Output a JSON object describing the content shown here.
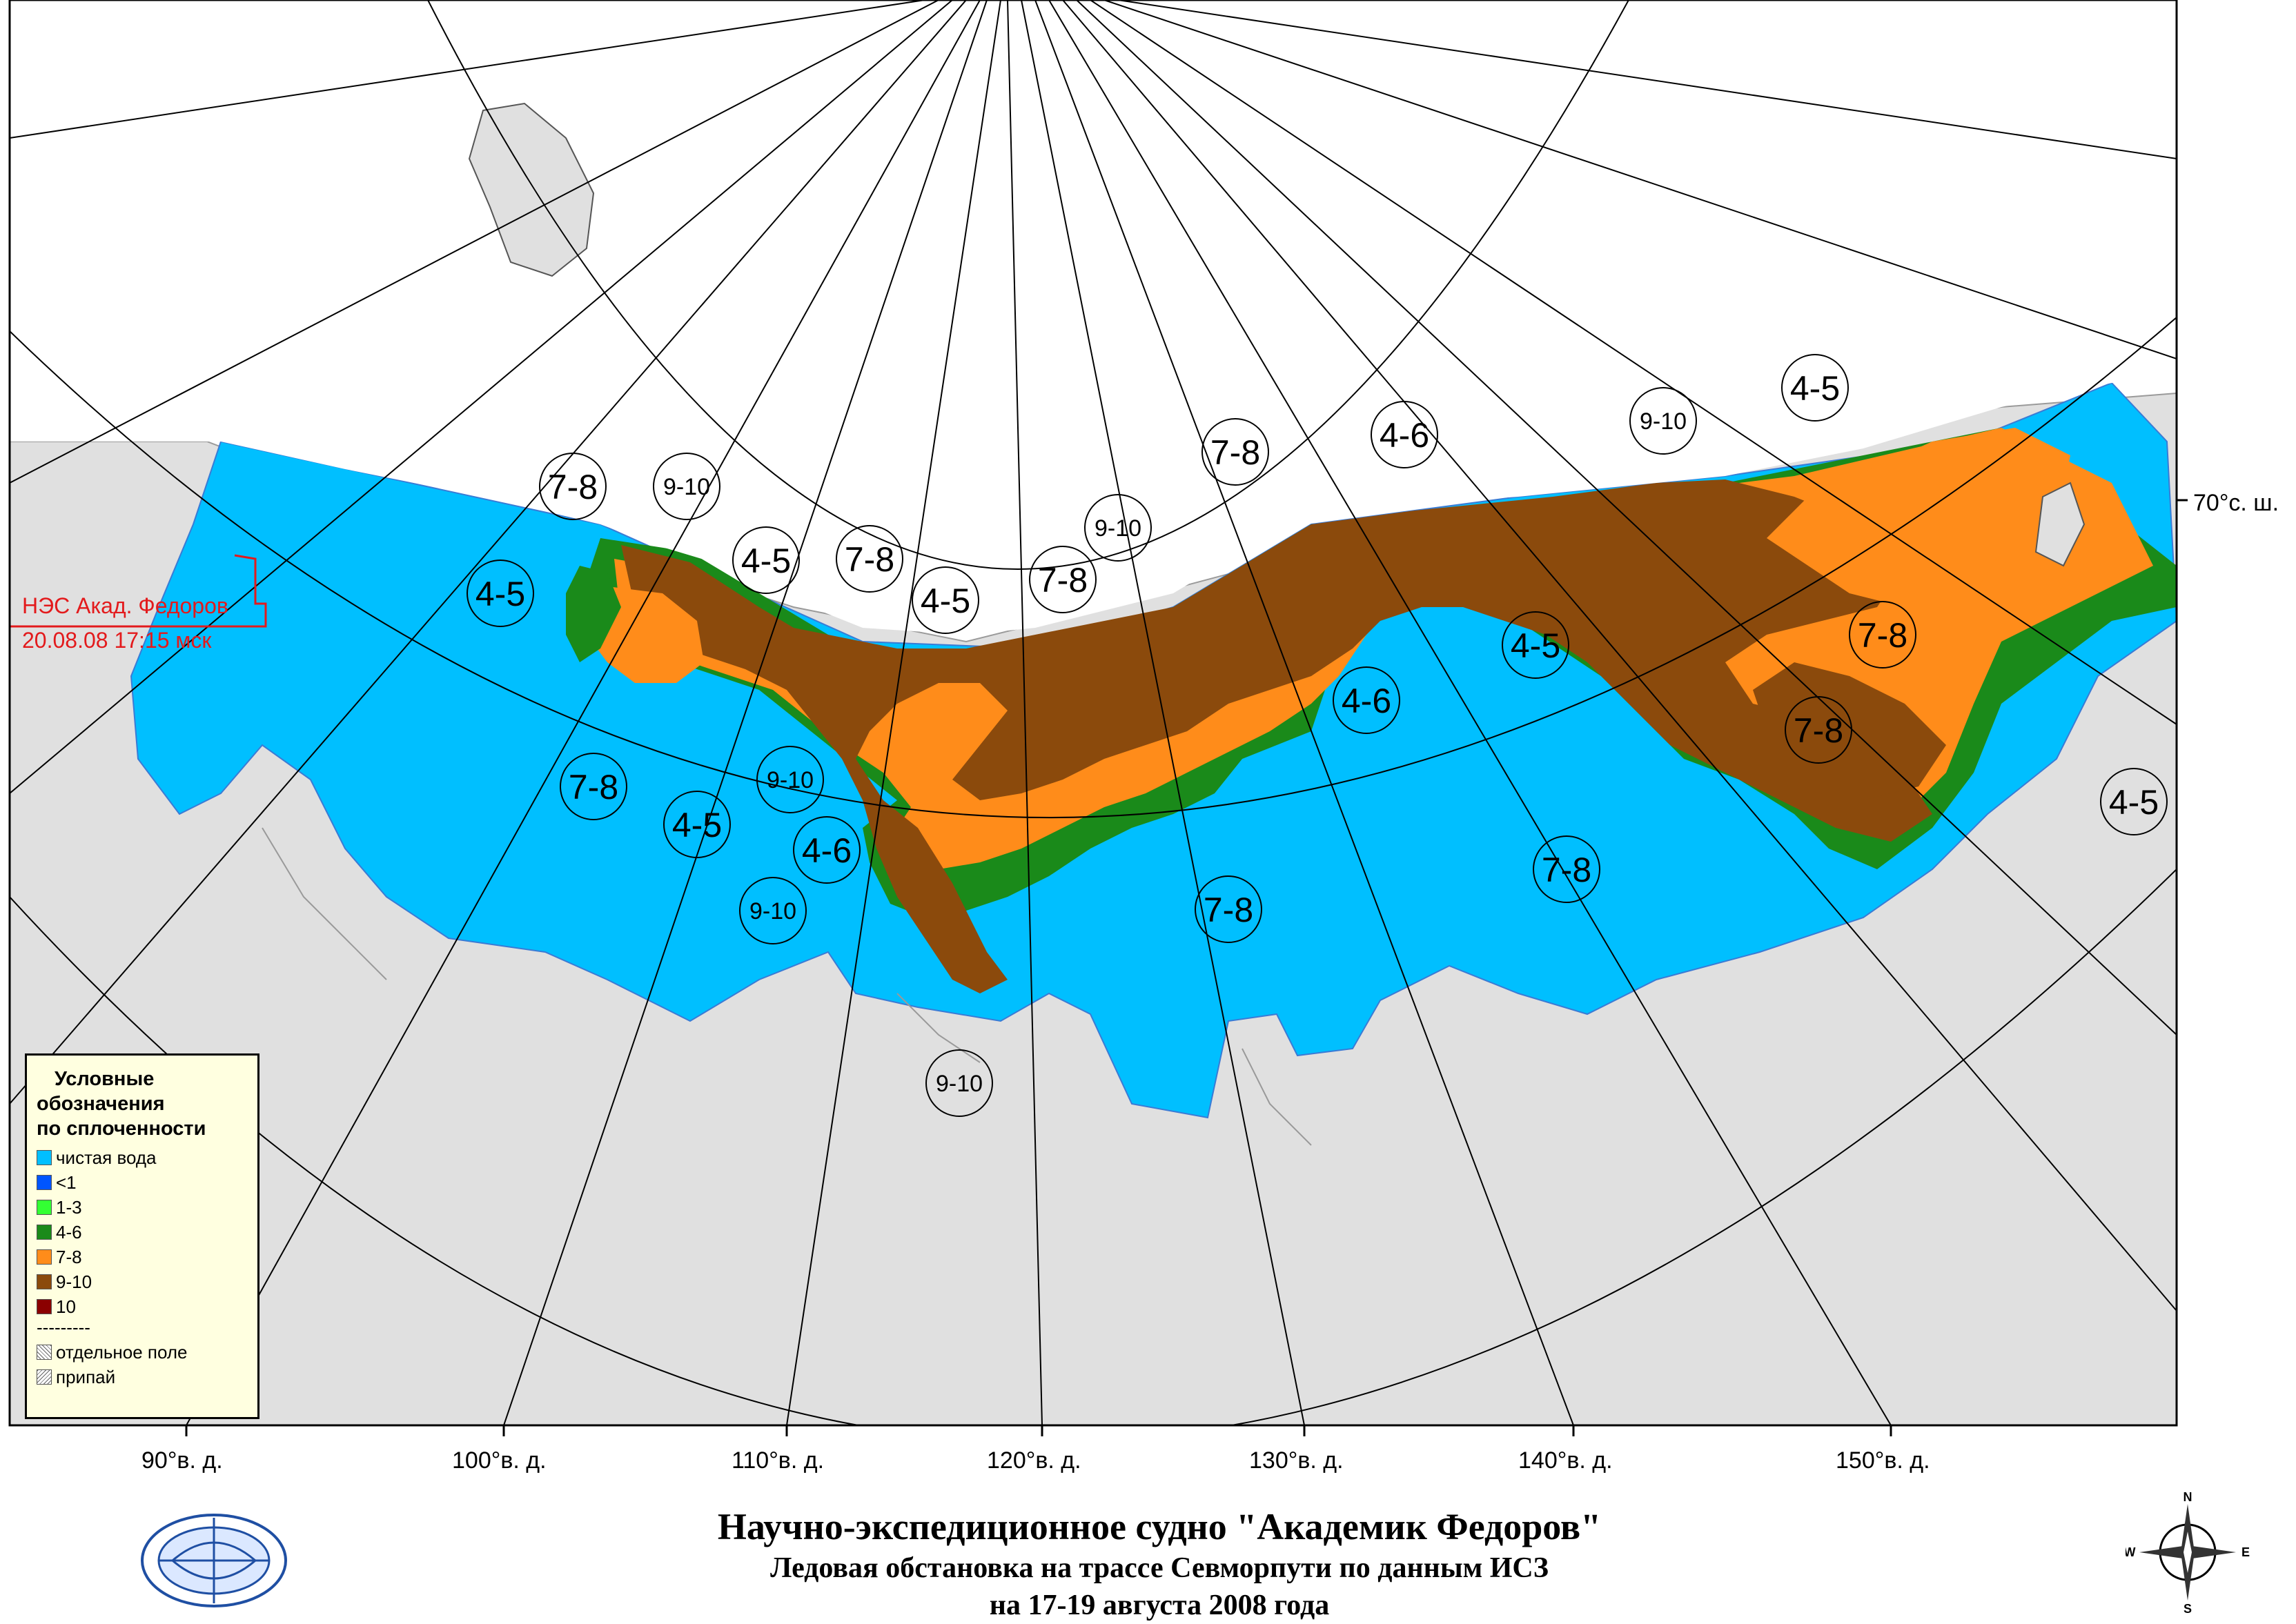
{
  "title": {
    "main": "Научно-экспедиционное судно \"Академик Федоров\"",
    "line2": "Ледовая обстановка на трассе Севморпути по данным ИСЗ",
    "line3": "на 17-19 августа 2008 года"
  },
  "ship": {
    "name": "НЭС Акад. Федоров",
    "time": "20.08.08 17:15 мск",
    "color": "#e31a1c"
  },
  "longitude_labels": [
    "90°в. д.",
    "100°в. д.",
    "110°в. д.",
    "120°в. д.",
    "130°в. д.",
    "140°в. д.",
    "150°в. д."
  ],
  "latitude_label": "70°с. ш.",
  "legend": {
    "title_l1": "Условные",
    "title_l2": "обозначения",
    "title_l3": "по сплоченности",
    "items": [
      {
        "label": "чистая вода",
        "color": "#00bfff"
      },
      {
        "label": "<1",
        "color": "#0055ff"
      },
      {
        "label": "1-3",
        "color": "#33ff33"
      },
      {
        "label": "4-6",
        "color": "#1a8a1a"
      },
      {
        "label": "7-8",
        "color": "#ff8c1a"
      },
      {
        "label": "9-10",
        "color": "#8b4a0c"
      },
      {
        "label": "10",
        "color": "#8b0000"
      }
    ],
    "separator": "---------",
    "extra": [
      {
        "label": "отдельное поле"
      },
      {
        "label": "припай"
      }
    ]
  },
  "concentration_labels": [
    {
      "text": "7-8"
    },
    {
      "text": "9-10"
    },
    {
      "text": "4-5"
    },
    {
      "text": "4-5"
    },
    {
      "text": "7-8"
    },
    {
      "text": "4-5"
    },
    {
      "text": "7-8"
    },
    {
      "text": "9-10"
    },
    {
      "text": "7-8"
    },
    {
      "text": "4-6"
    },
    {
      "text": "9-10"
    },
    {
      "text": "4-5"
    },
    {
      "text": "4-5"
    },
    {
      "text": "7-8"
    },
    {
      "text": "4-6"
    },
    {
      "text": "7-8"
    },
    {
      "text": "4-5"
    },
    {
      "text": "9-10"
    },
    {
      "text": "9-10"
    },
    {
      "text": "4-5"
    },
    {
      "text": "7-8"
    },
    {
      "text": "4-6"
    },
    {
      "text": "7-8"
    },
    {
      "text": "7-8"
    },
    {
      "text": "9-10"
    }
  ],
  "colors": {
    "land": "#e0e0e0",
    "open_water": "#00bfff",
    "ice_4_6": "#1a8a1a",
    "ice_7_8": "#ff8c1a",
    "ice_9_10": "#8b4a0c",
    "legend_bg": "#ffffe0"
  }
}
